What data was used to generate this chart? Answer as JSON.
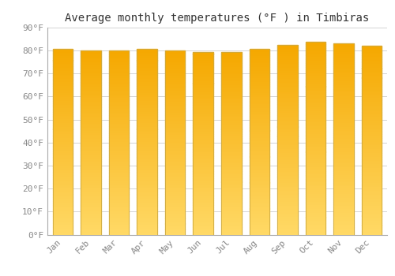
{
  "title": "Average monthly temperatures (°F ) in Timbiras",
  "months": [
    "Jan",
    "Feb",
    "Mar",
    "Apr",
    "May",
    "Jun",
    "Jul",
    "Aug",
    "Sep",
    "Oct",
    "Nov",
    "Dec"
  ],
  "values": [
    80.6,
    80.1,
    80.1,
    80.6,
    79.9,
    79.3,
    79.2,
    80.8,
    82.4,
    83.7,
    83.3,
    82.2
  ],
  "bar_color_top": "#F5A800",
  "bar_color_bottom": "#FFD966",
  "background_color": "#ffffff",
  "grid_color": "#cccccc",
  "text_color": "#888888",
  "title_fontsize": 10,
  "tick_fontsize": 8,
  "ylim": [
    0,
    90
  ],
  "yticks": [
    0,
    10,
    20,
    30,
    40,
    50,
    60,
    70,
    80,
    90
  ]
}
